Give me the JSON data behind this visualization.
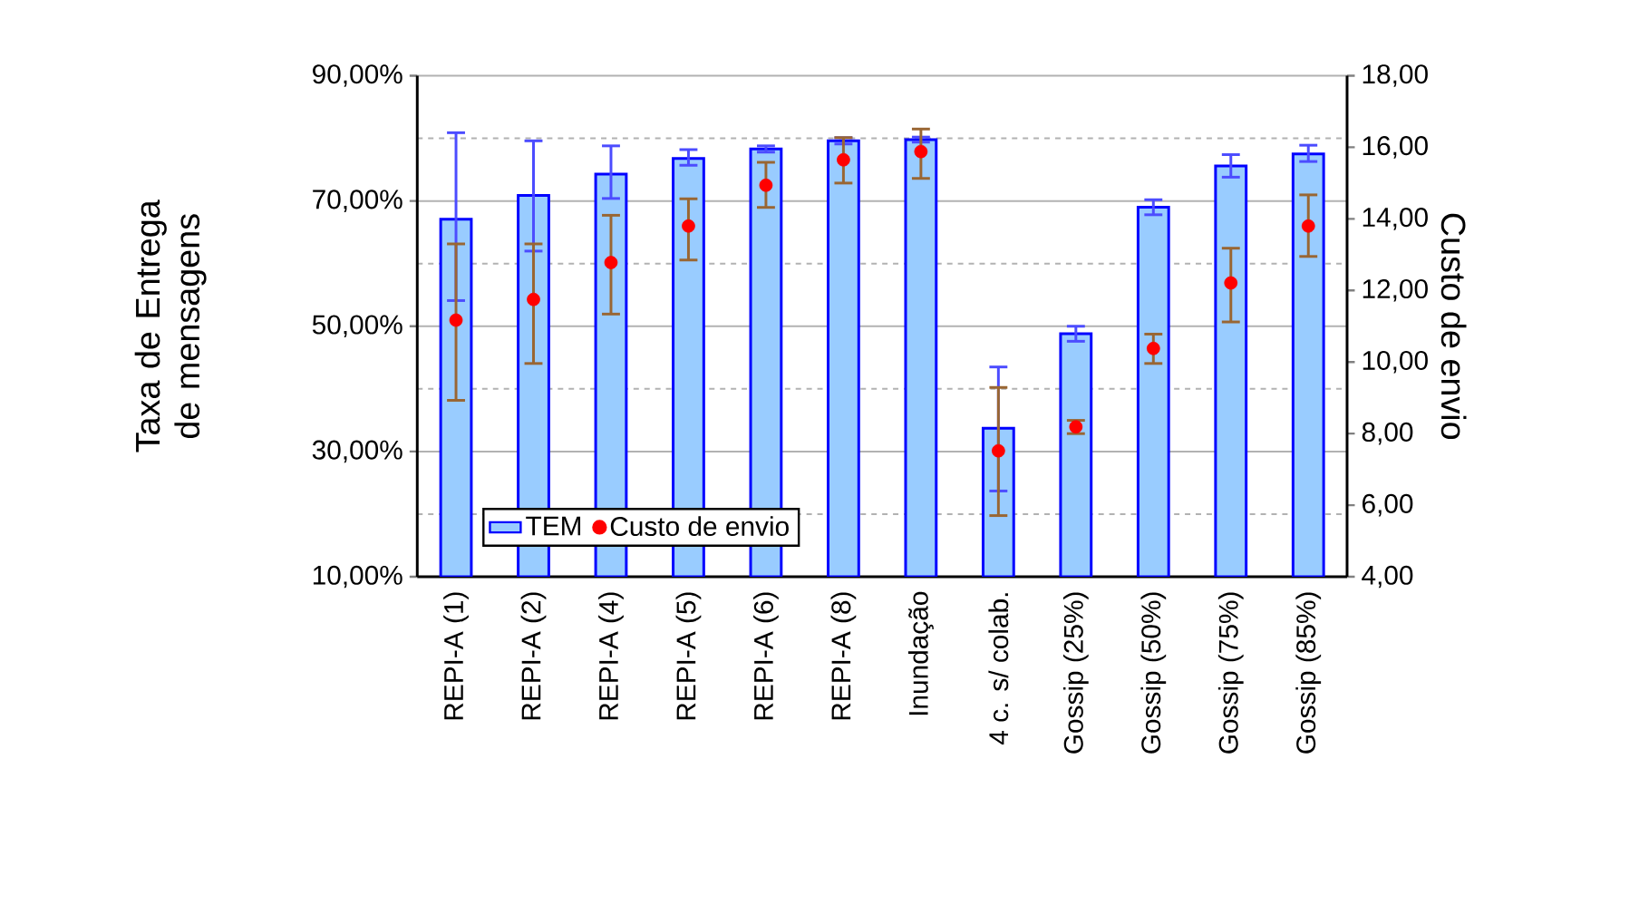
{
  "chart_data": {
    "type": "bar",
    "ylabel": "Taxa de Entrega de mensagens",
    "y2label": "Custo de envio",
    "categories": [
      "REPI-A (1)",
      "REPI-A (2)",
      "REPI-A (4)",
      "REPI-A (5)",
      "REPI-A (6)",
      "REPI-A (8)",
      "Inundação",
      "4 c. s/ colab.",
      "Gossip (25%)",
      "Gossip (50%)",
      "Gossip (75%)",
      "Gossip (85%)"
    ],
    "series": [
      {
        "name": "TEM",
        "color": "#99ccff",
        "values": [
          67.1,
          70.9,
          74.3,
          76.8,
          78.3,
          79.6,
          79.8,
          33.7,
          48.8,
          69.0,
          75.6,
          77.5
        ],
        "errors": [
          [
            54.1,
            80.9
          ],
          [
            62.0,
            79.6
          ],
          [
            70.4,
            78.8
          ],
          [
            75.7,
            78.2
          ],
          [
            77.8,
            78.8
          ],
          [
            79.1,
            80.1
          ],
          [
            79.4,
            80.2
          ],
          [
            23.7,
            43.5
          ],
          [
            47.6,
            50.0
          ],
          [
            67.8,
            70.2
          ],
          [
            73.8,
            77.4
          ],
          [
            76.3,
            78.9
          ]
        ]
      },
      {
        "name": "Custo de envio",
        "type": "scatter",
        "axis": "y2",
        "color": "#ff0000",
        "values": [
          11.17,
          11.75,
          12.78,
          13.8,
          14.94,
          15.65,
          15.88,
          7.52,
          8.19,
          10.38,
          12.21,
          13.8
        ],
        "errors": [
          [
            8.93,
            13.3
          ],
          [
            9.96,
            13.3
          ],
          [
            11.34,
            14.1
          ],
          [
            12.85,
            14.56
          ],
          [
            14.32,
            15.58
          ],
          [
            15.0,
            16.27
          ],
          [
            15.13,
            16.51
          ],
          [
            5.71,
            9.29
          ],
          [
            8.0,
            8.37
          ],
          [
            9.96,
            10.78
          ],
          [
            11.12,
            13.18
          ],
          [
            12.95,
            14.67
          ]
        ]
      }
    ],
    "ylim": [
      10,
      90
    ],
    "yticks": [
      {
        "value": 10,
        "label": "10,00%"
      },
      {
        "value": 30,
        "label": "30,00%"
      },
      {
        "value": 50,
        "label": "50,00%"
      },
      {
        "value": 70,
        "label": "70,00%"
      },
      {
        "value": 90,
        "label": "90,00%"
      }
    ],
    "y2lim": [
      4,
      18
    ],
    "y2ticks": [
      {
        "value": 4,
        "label": "4,00"
      },
      {
        "value": 6,
        "label": "6,00"
      },
      {
        "value": 8,
        "label": "8,00"
      },
      {
        "value": 10,
        "label": "10,00"
      },
      {
        "value": 12,
        "label": "12,00"
      },
      {
        "value": 14,
        "label": "14,00"
      },
      {
        "value": 16,
        "label": "16,00"
      },
      {
        "value": 18,
        "label": "18,00"
      }
    ],
    "grid": "y",
    "legend": "bottom left",
    "marker": "circle"
  }
}
